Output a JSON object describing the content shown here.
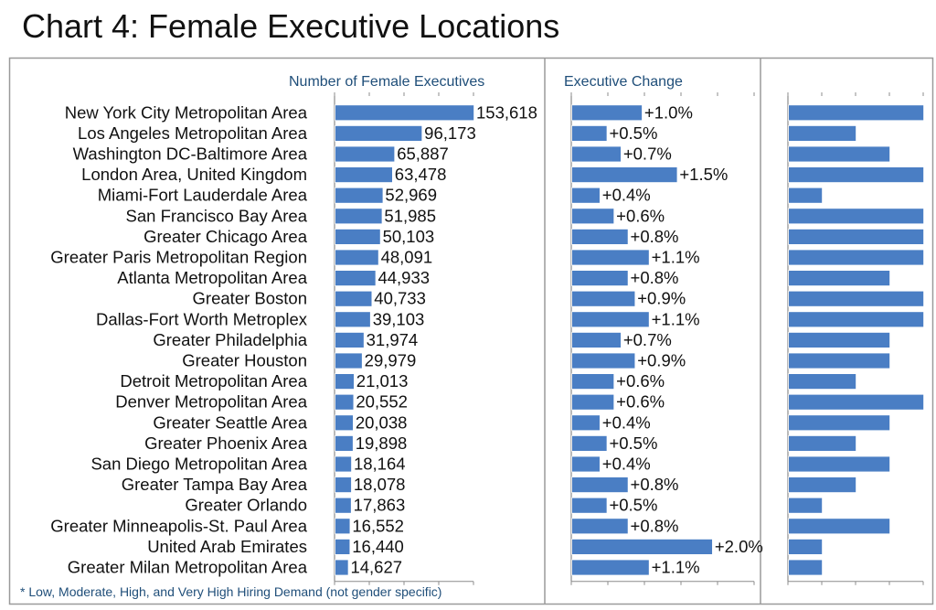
{
  "chart_data": {
    "type": "bar",
    "title": "Chart 4: Female Executive Locations",
    "footnote": "* Low, Moderate, High, and Very High Hiring Demand (not gender specific)",
    "categories": [
      "New York City Metropolitan Area",
      "Los Angeles Metropolitan Area",
      "Washington DC-Baltimore Area",
      "London Area, United Kingdom",
      "Miami-Fort Lauderdale Area",
      "San Francisco Bay Area",
      "Greater Chicago Area",
      "Greater Paris Metropolitan Region",
      "Atlanta Metropolitan Area",
      "Greater Boston",
      "Dallas-Fort Worth Metroplex",
      "Greater Philadelphia",
      "Greater Houston",
      "Detroit Metropolitan Area",
      "Denver Metropolitan Area",
      "Greater Seattle Area",
      "Greater Phoenix Area",
      "San Diego Metropolitan Area",
      "Greater Tampa Bay Area",
      "Greater Orlando",
      "Greater Minneapolis-St. Paul Area",
      "United Arab Emirates",
      "Greater Milan Metropolitan Area"
    ],
    "panels": [
      {
        "header": "Number of Female Executives",
        "values": [
          153618,
          96173,
          65887,
          63478,
          52969,
          51985,
          50103,
          48091,
          44933,
          40733,
          39103,
          31974,
          29979,
          21013,
          20552,
          20038,
          19898,
          18164,
          18078,
          17863,
          16552,
          16440,
          14627
        ],
        "labels": [
          "153,618",
          "96,173",
          "65,887",
          "63,478",
          "52,969",
          "51,985",
          "50,103",
          "48,091",
          "44,933",
          "40,733",
          "39,103",
          "31,974",
          "29,979",
          "21,013",
          "20,552",
          "20,038",
          "19,898",
          "18,164",
          "18,078",
          "17,863",
          "16,552",
          "16,440",
          "14,627"
        ],
        "xlim": [
          0,
          160000
        ]
      },
      {
        "header": "Executive  Change",
        "values": [
          1.0,
          0.5,
          0.7,
          1.5,
          0.4,
          0.6,
          0.8,
          1.1,
          0.8,
          0.9,
          1.1,
          0.7,
          0.9,
          0.6,
          0.6,
          0.4,
          0.5,
          0.4,
          0.8,
          0.5,
          0.8,
          2.0,
          1.1
        ],
        "labels": [
          "+1.0%",
          "+0.5%",
          "+0.7%",
          "+1.5%",
          "+0.4%",
          "+0.6%",
          "+0.8%",
          "+1.1%",
          "+0.8%",
          "+0.9%",
          "+1.1%",
          "+0.7%",
          "+0.9%",
          "+0.6%",
          "+0.6%",
          "+0.4%",
          "+0.5%",
          "+0.4%",
          "+0.8%",
          "+0.5%",
          "+0.8%",
          "+2.0%",
          "+1.1%"
        ],
        "xlim": [
          0,
          2.6
        ]
      },
      {
        "header": "",
        "values": [
          4,
          2,
          3,
          4,
          1,
          4,
          4,
          4,
          3,
          4,
          4,
          3,
          3,
          2,
          4,
          3,
          2,
          3,
          2,
          1,
          3,
          1,
          1
        ],
        "labels": [],
        "xlim": [
          0,
          4
        ]
      }
    ],
    "bar_color": "#4a7ec4"
  }
}
